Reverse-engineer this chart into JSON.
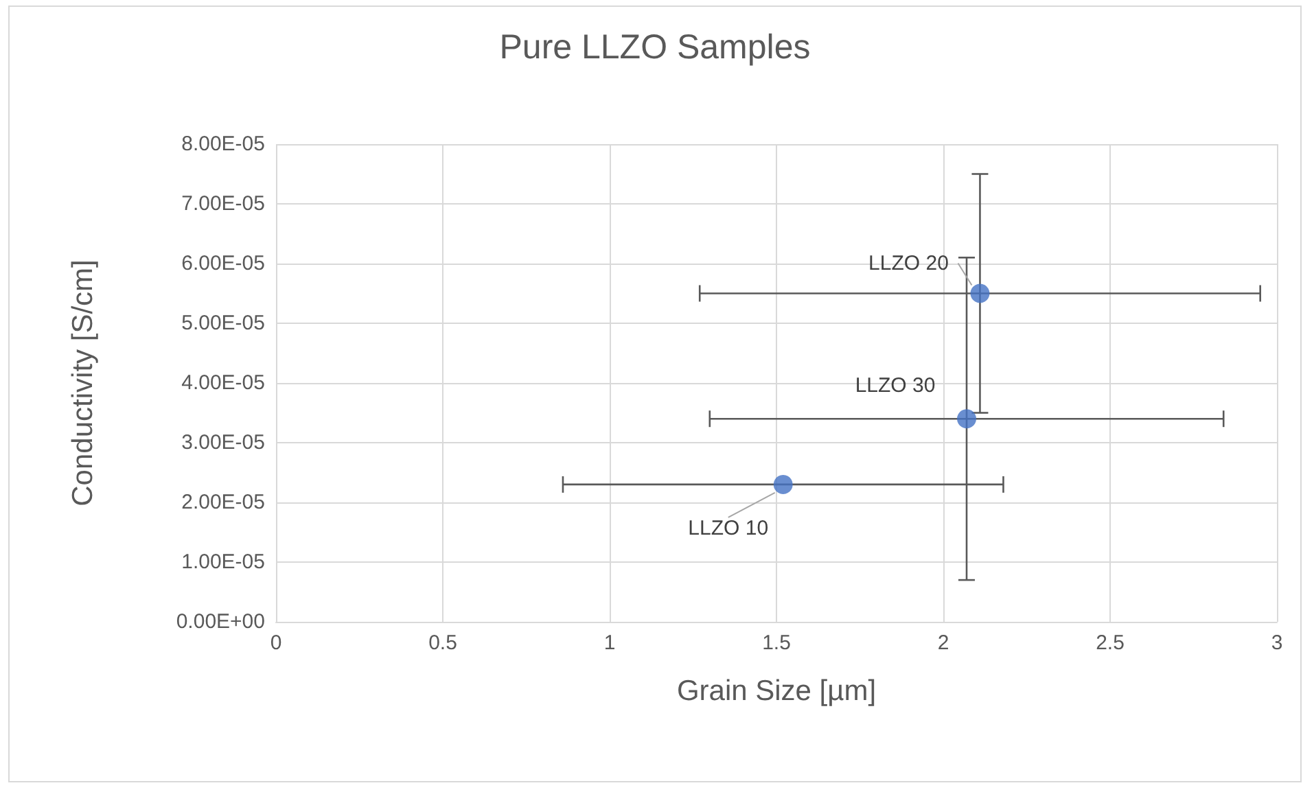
{
  "chart_data": {
    "type": "scatter",
    "title": "Pure LLZO Samples",
    "xlabel": "Grain Size [µm]",
    "ylabel": "Conductivity [S/cm]",
    "series": [
      {
        "color": "#4472c4",
        "x": [
          2.11,
          2.07,
          1.52
        ],
        "values": [
          5.5e-05,
          3.4e-05,
          2.3e-05
        ],
        "errors": [
          2e-05,
          2.7e-05,
          null
        ],
        "xerrors": [
          0.84,
          0.77,
          0.66
        ]
      }
    ],
    "annotations": [
      {
        "text": "LLZO 20",
        "x": 2.11,
        "y": 5.5e-05
      },
      {
        "text": "LLZO 30",
        "x": 2.07,
        "y": 3.4e-05
      },
      {
        "text": "LLZO 10",
        "x": 1.52,
        "y": 2.3e-05
      }
    ],
    "xlim": [
      0,
      3
    ],
    "xticks": [
      0,
      0.5,
      1,
      1.5,
      2,
      2.5,
      3
    ],
    "ylim": [
      0,
      8e-05
    ],
    "yticks": [
      {
        "value": 0,
        "label": "0.00E+00"
      },
      {
        "value": 1e-05,
        "label": "1.00E-05"
      },
      {
        "value": 2e-05,
        "label": "2.00E-05"
      },
      {
        "value": 3e-05,
        "label": "3.00E-05"
      },
      {
        "value": 4e-05,
        "label": "4.00E-05"
      },
      {
        "value": 5e-05,
        "label": "5.00E-05"
      },
      {
        "value": 6e-05,
        "label": "6.00E-05"
      },
      {
        "value": 7e-05,
        "label": "7.00E-05"
      },
      {
        "value": 8e-05,
        "label": "8.00E-05"
      }
    ],
    "grid": true,
    "marker": "circle"
  }
}
